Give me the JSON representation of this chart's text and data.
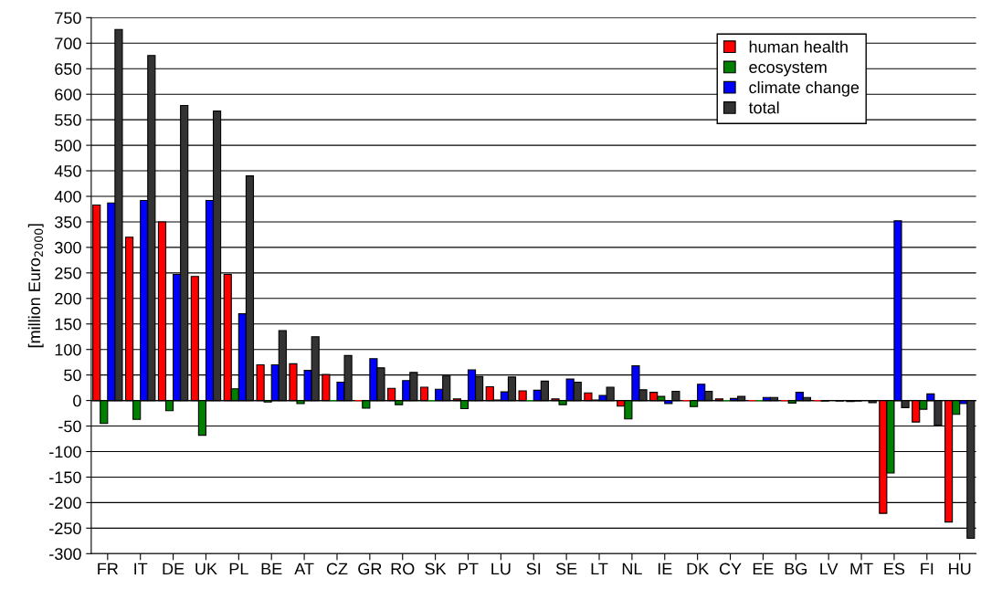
{
  "chart_data": {
    "type": "bar",
    "ylabel": "[million Euro$_{2000}$]",
    "categories": [
      "FR",
      "IT",
      "DE",
      "UK",
      "PL",
      "BE",
      "AT",
      "CZ",
      "GR",
      "RO",
      "SK",
      "PT",
      "LU",
      "SI",
      "SE",
      "LT",
      "NL",
      "IE",
      "DK",
      "CY",
      "EE",
      "BG",
      "LV",
      "MT",
      "ES",
      "FI",
      "HU"
    ],
    "series": [
      {
        "name": "human health",
        "color": "#ff0000",
        "values": [
          383,
          320,
          350,
          243,
          247,
          70,
          72,
          51,
          0,
          24,
          26,
          3,
          27,
          19,
          3,
          15,
          -11,
          16,
          0,
          3,
          0,
          0,
          0,
          -2,
          -221,
          -42,
          -238
        ]
      },
      {
        "name": "ecosystem",
        "color": "#008000",
        "values": [
          -45,
          -37,
          -20,
          -68,
          23,
          -3,
          -6,
          0,
          -15,
          -8,
          0,
          -16,
          1,
          0,
          -8,
          1,
          -36,
          8,
          -12,
          0,
          0,
          -5,
          -1,
          -1,
          -142,
          -17,
          -27
        ]
      },
      {
        "name": "climate change",
        "color": "#0000ff",
        "values": [
          387,
          392,
          247,
          392,
          170,
          70,
          59,
          36,
          82,
          39,
          22,
          60,
          17,
          20,
          42,
          10,
          68,
          -6,
          32,
          4,
          6,
          16,
          null,
          null,
          352,
          13,
          -6
        ]
      },
      {
        "name": "total",
        "color": "#333333",
        "values": [
          727,
          676,
          578,
          567,
          440,
          137,
          125,
          88,
          64,
          55,
          48,
          47,
          46,
          38,
          36,
          26,
          21,
          18,
          18,
          8,
          6,
          6,
          -1,
          -4,
          -14,
          -48,
          -270
        ]
      }
    ],
    "ylim": [
      -300,
      750
    ],
    "yticks": [
      -300,
      -250,
      -200,
      -150,
      -100,
      -50,
      0,
      50,
      100,
      150,
      200,
      250,
      300,
      350,
      400,
      450,
      500,
      550,
      600,
      650,
      700,
      750
    ],
    "grid": "y",
    "legend": "top right"
  }
}
